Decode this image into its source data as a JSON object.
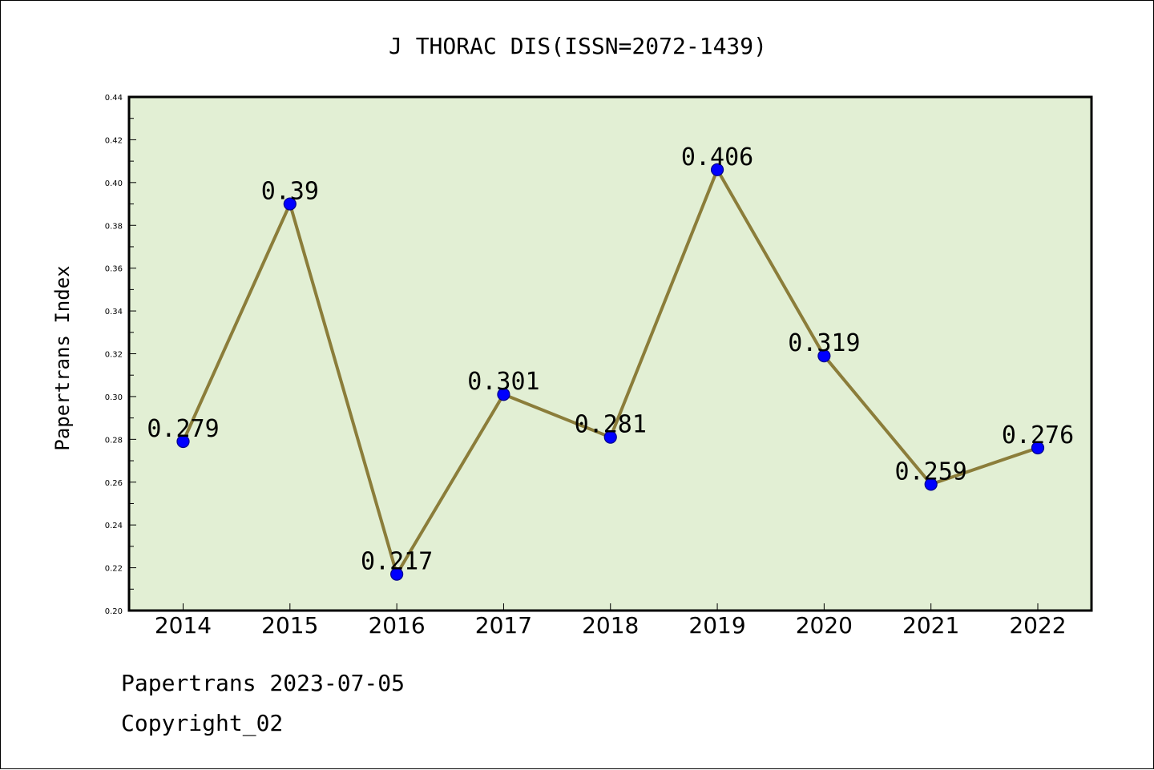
{
  "chart_data": {
    "type": "line",
    "title": "J THORAC DIS(ISSN=2072-1439)",
    "xlabel": "",
    "ylabel": "Papertrans Index",
    "categories": [
      "2014",
      "2015",
      "2016",
      "2017",
      "2018",
      "2019",
      "2020",
      "2021",
      "2022"
    ],
    "values": [
      0.279,
      0.39,
      0.217,
      0.301,
      0.281,
      0.406,
      0.319,
      0.259,
      0.276
    ],
    "data_labels": [
      "0.279",
      "0.39",
      "0.217",
      "0.301",
      "0.281",
      "0.406",
      "0.319",
      "0.259",
      "0.276"
    ],
    "ylim": [
      0.2,
      0.44
    ],
    "yticks": [
      "0.20",
      "0.22",
      "0.24",
      "0.26",
      "0.28",
      "0.30",
      "0.32",
      "0.34",
      "0.36",
      "0.38",
      "0.40",
      "0.42",
      "0.44"
    ],
    "grid": false,
    "legend": "none",
    "colors": {
      "plot_background": "#e2efd4",
      "line": "#8b7d3a",
      "marker": "#0000ff",
      "marker_edge": "#00008b"
    }
  },
  "footer": {
    "date_text": "Papertrans 2023-07-05",
    "copyright_text": "Copyright_02"
  }
}
